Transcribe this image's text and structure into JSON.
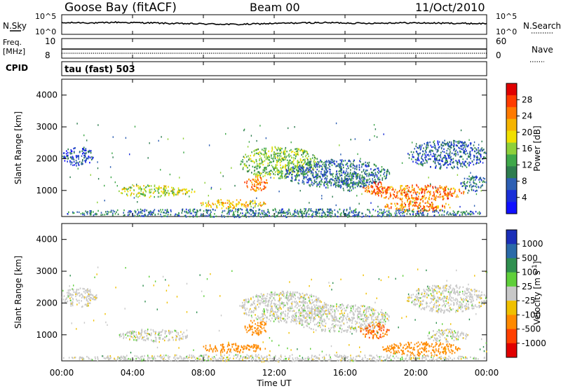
{
  "header": {
    "station": "Goose Bay (fitACF)",
    "beam": "Beam 00",
    "date": "11/Oct/2010"
  },
  "top_panels": {
    "nsky_label": "N.Sky",
    "nsky_ticks": [
      "10^5",
      "10^0"
    ],
    "nsearch_label": "N.Search",
    "freq_label": "Freq.",
    "freq_unit": "[MHz]",
    "freq_ticks": [
      "10",
      "8"
    ],
    "nave_label": "Nave",
    "nave_ticks": [
      "60",
      "0"
    ],
    "cpid_label": "CPID",
    "cpid_value": "tau (fast) 503"
  },
  "axes": {
    "ylabel": "Slant Range [km]",
    "yticks": [
      "4000",
      "3000",
      "2000",
      "1000"
    ],
    "xticks": [
      "00:00",
      "04:00",
      "08:00",
      "12:00",
      "16:00",
      "20:00",
      "00:00"
    ],
    "xlabel": "Time UT"
  },
  "colorbars": {
    "power": {
      "label": "Power [dB]",
      "ticks": [
        "28",
        "24",
        "20",
        "16",
        "12",
        "8",
        "4"
      ],
      "colors": [
        "#e00000",
        "#ff3c00",
        "#ff7a00",
        "#f5b400",
        "#f0e000",
        "#8ed03a",
        "#3fa84a",
        "#2e7d4f",
        "#2d5fb3",
        "#1a2fd8",
        "#1010ff"
      ]
    },
    "velocity": {
      "label": "Velocity [m s^-1]",
      "ticks": [
        "1000",
        "500",
        "100",
        "25",
        "-25",
        "-100",
        "-500",
        "-1000"
      ],
      "colors": [
        "#1b2fb8",
        "#2a6aa8",
        "#2f8f4f",
        "#5fcf3a",
        "#c8c8c8",
        "#f0c000",
        "#ff8a00",
        "#ff4000",
        "#e00000"
      ]
    }
  },
  "chart_data": [
    {
      "type": "line",
      "title": "N.Sky",
      "x_range_hours": [
        0,
        24
      ],
      "y_scale": "log",
      "series": [
        {
          "values": [
            1200,
            1500,
            1100,
            1800,
            1400,
            1300,
            900,
            800,
            700,
            600,
            500,
            700,
            900,
            1100,
            1300,
            1400,
            1200,
            1000,
            1100,
            1300,
            1200,
            1100,
            1000,
            900,
            800
          ]
        }
      ]
    },
    {
      "type": "line",
      "title": "Freq.",
      "x_range_hours": [
        0,
        24
      ],
      "series": [
        {
          "values": [
            10,
            10,
            10,
            10,
            10,
            10,
            10,
            10,
            10,
            10,
            10,
            10,
            10,
            10,
            10,
            10,
            10,
            10,
            10,
            10,
            10,
            10,
            10,
            10,
            10
          ]
        }
      ]
    },
    {
      "type": "heatmap",
      "title": "Power [dB]",
      "xlabel": "Time UT",
      "ylabel": "Slant Range [km]",
      "x_range_hours": [
        0,
        24
      ],
      "y_range_km": [
        180,
        4500
      ],
      "blobs": [
        {
          "t": [
            0.0,
            1.8
          ],
          "r": [
            1800,
            2400
          ],
          "power": 5
        },
        {
          "t": [
            3.2,
            6.8
          ],
          "r": [
            800,
            1200
          ],
          "power": 16
        },
        {
          "t": [
            6.5,
            7.5
          ],
          "r": [
            900,
            1100
          ],
          "power": 18
        },
        {
          "t": [
            7.8,
            11.5
          ],
          "r": [
            450,
            750
          ],
          "power": 20
        },
        {
          "t": [
            10.3,
            11.6
          ],
          "r": [
            1000,
            1500
          ],
          "power": 24
        },
        {
          "t": [
            10.0,
            14.5
          ],
          "r": [
            1400,
            2400
          ],
          "power": 14
        },
        {
          "t": [
            12.5,
            18.5
          ],
          "r": [
            1100,
            2000
          ],
          "power": 7
        },
        {
          "t": [
            15.5,
            17.2
          ],
          "r": [
            1000,
            1600
          ],
          "power": 8
        },
        {
          "t": [
            17.0,
            18.5
          ],
          "r": [
            900,
            1300
          ],
          "power": 26
        },
        {
          "t": [
            17.5,
            22.8
          ],
          "r": [
            700,
            1200
          ],
          "power": 24
        },
        {
          "t": [
            18.2,
            22.0
          ],
          "r": [
            350,
            700
          ],
          "power": 24
        },
        {
          "t": [
            19.5,
            24.0
          ],
          "r": [
            1700,
            2600
          ],
          "power": 6
        },
        {
          "t": [
            22.5,
            24.0
          ],
          "r": [
            1000,
            1500
          ],
          "power": 7
        },
        {
          "t": [
            0.0,
            24.0
          ],
          "r": [
            180,
            450
          ],
          "power": 8
        }
      ]
    },
    {
      "type": "heatmap",
      "title": "Velocity [m s^-1]",
      "xlabel": "Time UT",
      "ylabel": "Slant Range [km]",
      "x_range_hours": [
        0,
        24
      ],
      "y_range_km": [
        180,
        4500
      ],
      "blobs": [
        {
          "t": [
            0.0,
            2.0
          ],
          "r": [
            1900,
            2500
          ],
          "velocity": 0
        },
        {
          "t": [
            3.2,
            7.2
          ],
          "r": [
            800,
            1200
          ],
          "velocity": 0
        },
        {
          "t": [
            7.8,
            11.5
          ],
          "r": [
            450,
            750
          ],
          "velocity": -300
        },
        {
          "t": [
            10.3,
            11.6
          ],
          "r": [
            1000,
            1500
          ],
          "velocity": -400
        },
        {
          "t": [
            10.0,
            15.0
          ],
          "r": [
            1400,
            2400
          ],
          "velocity": 0
        },
        {
          "t": [
            13.0,
            18.5
          ],
          "r": [
            1100,
            2000
          ],
          "velocity": 0
        },
        {
          "t": [
            16.8,
            18.5
          ],
          "r": [
            900,
            1400
          ],
          "velocity": -500
        },
        {
          "t": [
            18.0,
            22.5
          ],
          "r": [
            350,
            800
          ],
          "velocity": -200
        },
        {
          "t": [
            20.5,
            23.0
          ],
          "r": [
            800,
            1200
          ],
          "velocity": 0
        },
        {
          "t": [
            19.5,
            24.0
          ],
          "r": [
            1700,
            2600
          ],
          "velocity": 0
        },
        {
          "t": [
            0.0,
            24.0
          ],
          "r": [
            180,
            400
          ],
          "velocity": 0
        }
      ]
    }
  ]
}
